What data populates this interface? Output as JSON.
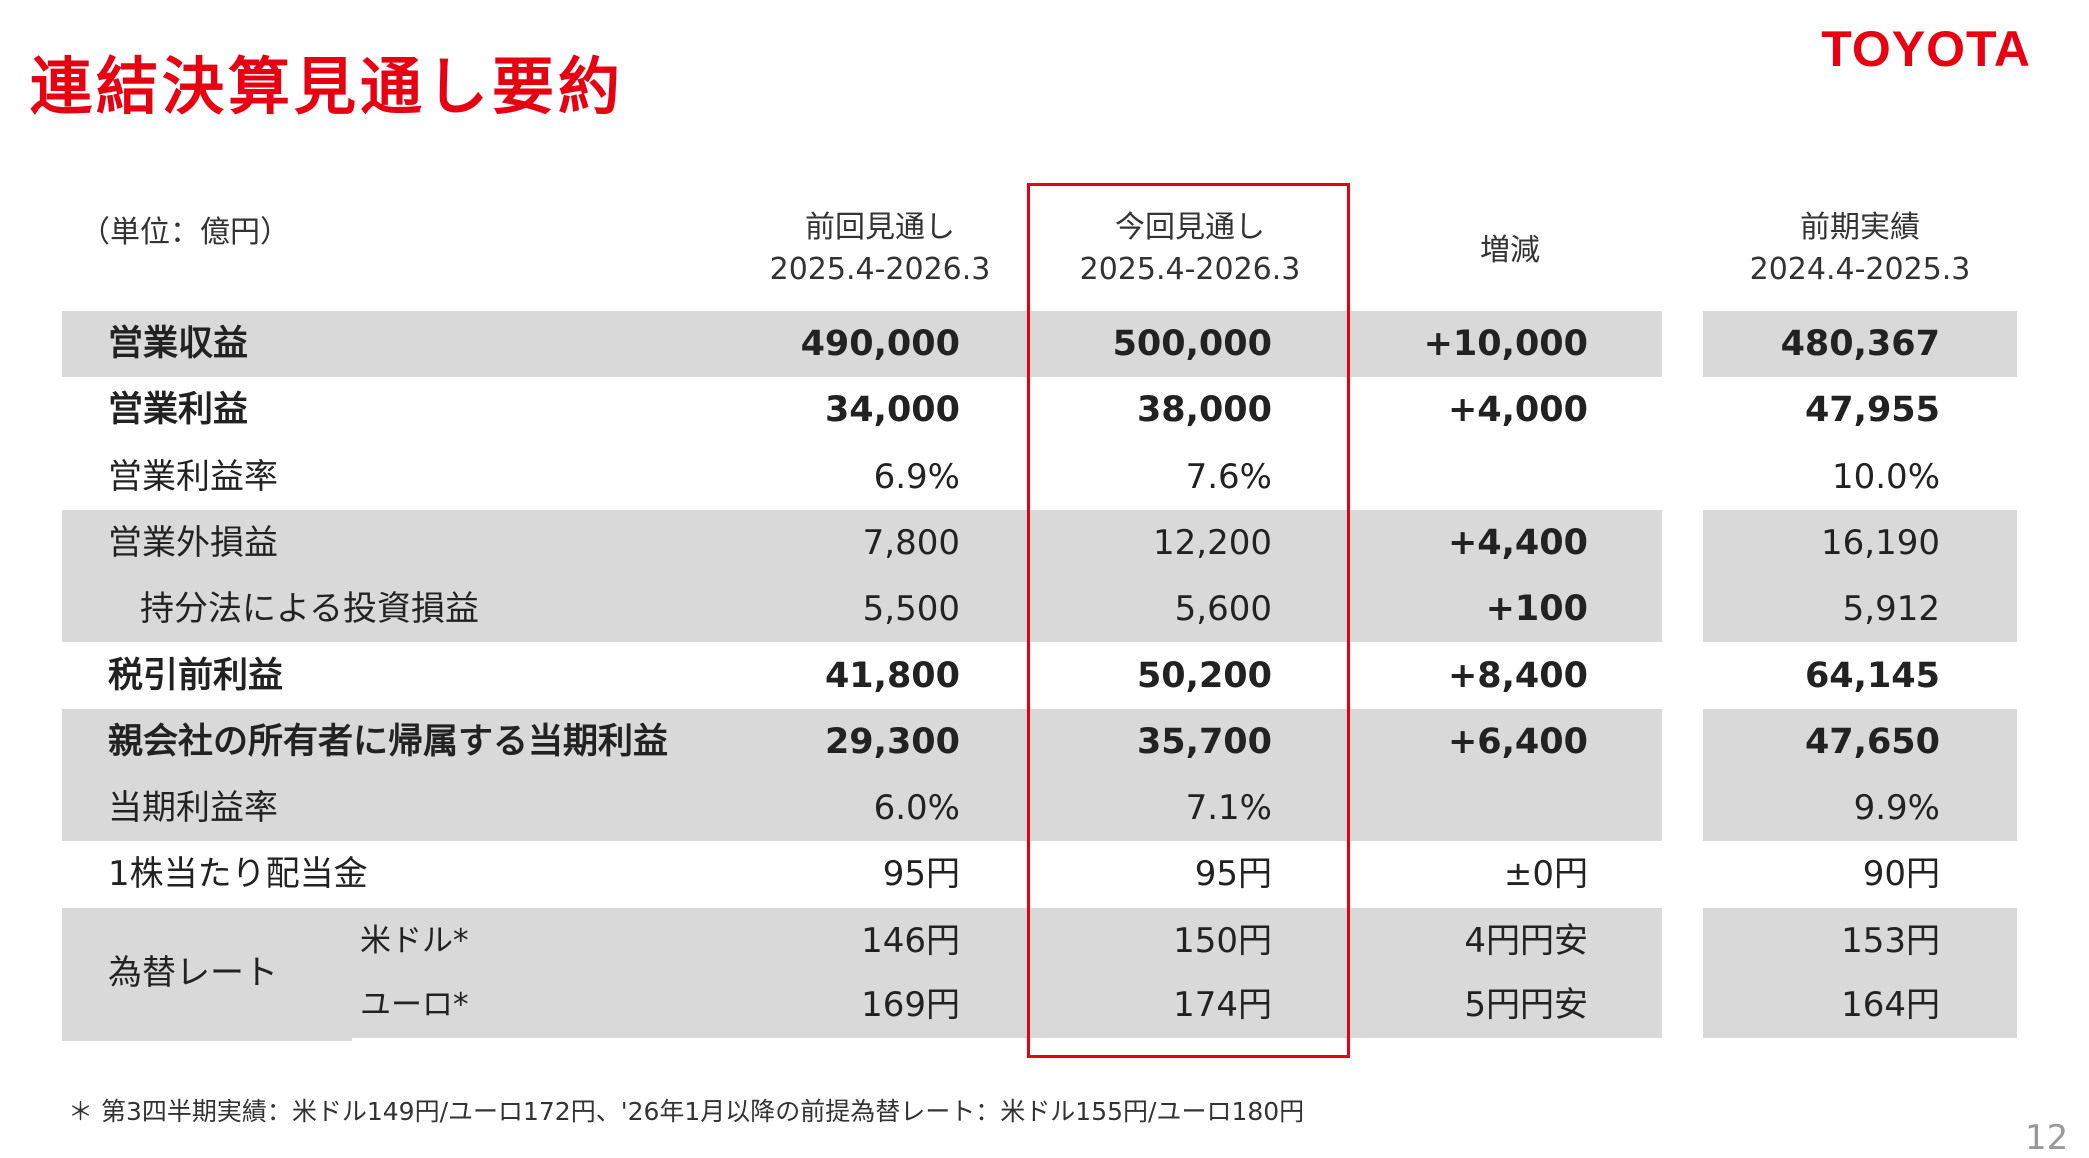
{
  "title": "連結決算見通し要約",
  "brand": "TOYOTA",
  "colors": {
    "accent": "#e60012",
    "band": "#d9d9d9"
  },
  "unit": "（単位：億円）",
  "columns": {
    "prev_forecast": {
      "label": "前回見通し",
      "period": "2025.4-2026.3"
    },
    "curr_forecast": {
      "label": "今回見通し",
      "period": "2025.4-2026.3"
    },
    "change": {
      "label": "増減"
    },
    "prior_actual": {
      "label": "前期実績",
      "period": "2024.4-2025.3"
    }
  },
  "rows": [
    {
      "label": "営業収益",
      "prev": "490,000",
      "curr": "500,000",
      "change": "+10,000",
      "prior": "480,367"
    },
    {
      "label": "営業利益",
      "prev": "34,000",
      "curr": "38,000",
      "change": "+4,000",
      "prior": "47,955"
    },
    {
      "label": "営業利益率",
      "prev": "6.9%",
      "curr": "7.6%",
      "change": "",
      "prior": "10.0%"
    },
    {
      "label": "営業外損益",
      "prev": "7,800",
      "curr": "12,200",
      "change": "+4,400",
      "prior": "16,190"
    },
    {
      "label": "持分法による投資損益",
      "prev": "5,500",
      "curr": "5,600",
      "change": "+100",
      "prior": "5,912"
    },
    {
      "label": "税引前利益",
      "prev": "41,800",
      "curr": "50,200",
      "change": "+8,400",
      "prior": "64,145"
    },
    {
      "label": "親会社の所有者に帰属する当期利益",
      "prev": "29,300",
      "curr": "35,700",
      "change": "+6,400",
      "prior": "47,650"
    },
    {
      "label": "当期利益率",
      "prev": "6.0%",
      "curr": "7.1%",
      "change": "",
      "prior": "9.9%"
    },
    {
      "label": "1株当たり配当金",
      "prev": "95円",
      "curr": "95円",
      "change": "±0円",
      "prior": "90円"
    }
  ],
  "fx": {
    "label": "為替レート",
    "rows": [
      {
        "label": "米ドル*",
        "prev": "146円",
        "curr": "150円",
        "change": "4円円安",
        "prior": "153円"
      },
      {
        "label": "ユーロ*",
        "prev": "169円",
        "curr": "174円",
        "change": "5円円安",
        "prior": "164円"
      }
    ]
  },
  "footnote": "＊ 第3四半期実績：米ドル149円/ユーロ172円、'26年1月以降の前提為替レート：米ドル155円/ユーロ180円",
  "page_number": "12"
}
